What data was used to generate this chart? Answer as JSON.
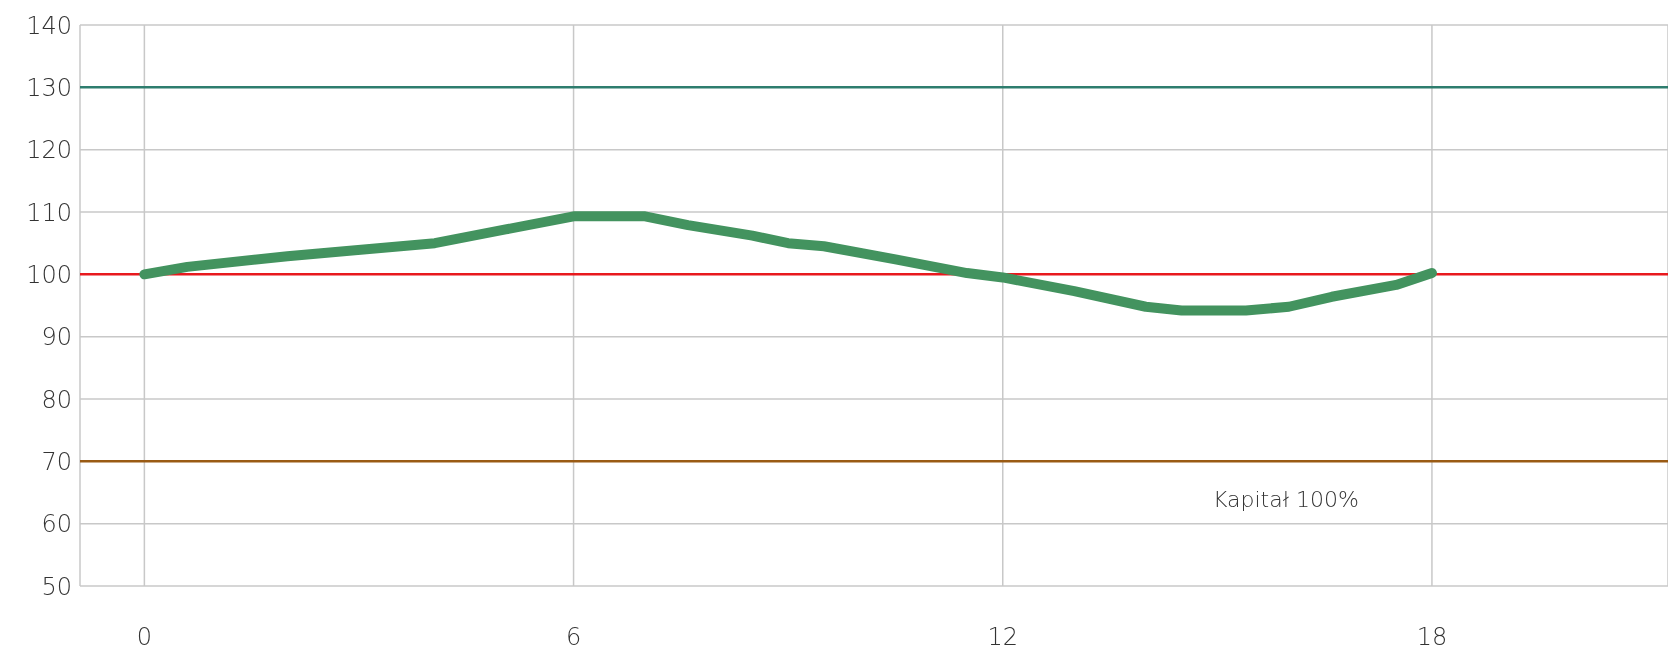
{
  "chart_data": {
    "type": "line",
    "x": [
      0,
      0.6,
      2,
      4.06,
      5.05,
      6,
      7,
      7.6,
      8.5,
      9,
      9.5,
      10.5,
      11.5,
      12,
      13,
      14,
      14.5,
      15.4,
      16,
      16.6,
      17.5,
      18
    ],
    "series": [
      {
        "color": "#43935f",
        "values": [
          100,
          101.2,
          102.9,
          105,
          107.2,
          109.3,
          109.3,
          107.9,
          106.2,
          105,
          104.5,
          102.4,
          100.2,
          99.5,
          97.3,
          94.8,
          94.2,
          94.2,
          94.8,
          96.4,
          98.3,
          100.2
        ]
      }
    ],
    "xlim": [
      -0.9,
      21.3
    ],
    "xticks": [
      0,
      6,
      12,
      18
    ],
    "ylim": [
      50,
      140
    ],
    "yticks": [
      50,
      60,
      70,
      80,
      90,
      100,
      110,
      120,
      130,
      140
    ],
    "grid": true,
    "legend": false,
    "marker": "none",
    "line_style": "solid",
    "ref_lines": [
      {
        "axis": "y",
        "value": 130,
        "color": "#2e7d6e"
      },
      {
        "axis": "y",
        "value": 100,
        "color": "#e8191e"
      },
      {
        "axis": "y",
        "value": 70,
        "color": "#9a5b14"
      }
    ],
    "annotations": [
      "Kapitał 100%"
    ]
  }
}
